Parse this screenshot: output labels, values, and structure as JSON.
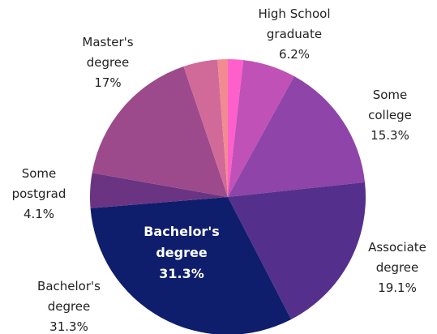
{
  "chart_data": {
    "type": "pie",
    "categories": [
      null,
      "High School graduate",
      "Some college",
      "Associate degree",
      "Bachelor's degree",
      "Some postgrad",
      "Master's degree",
      null,
      null
    ],
    "values": [
      1.8,
      6.2,
      15.3,
      19.1,
      31.3,
      4.1,
      17,
      4,
      1.2
    ],
    "value_labels": [
      null,
      "6.2%",
      "15.3%",
      "19.1%",
      "31.3%",
      "4.1%",
      "17%",
      null,
      null
    ],
    "colors": [
      "#ff5fcb",
      "#c051b6",
      "#8e44a8",
      "#54308c",
      "#0e1e6c",
      "#6a3482",
      "#9c4a8c",
      "#d16a98",
      "#f28a92"
    ]
  }
}
